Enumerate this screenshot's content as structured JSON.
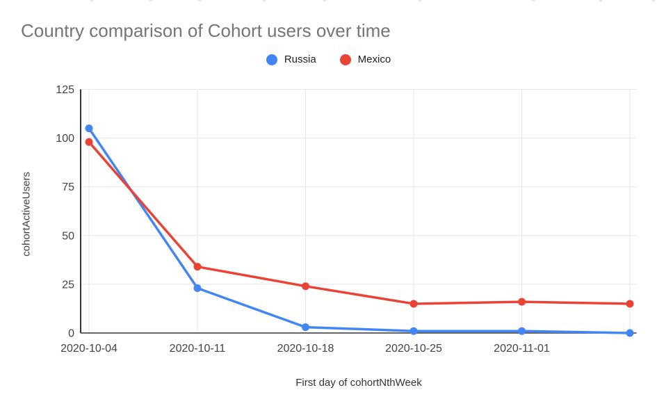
{
  "chart_data": {
    "type": "line",
    "title": "Country comparison of Cohort users over time",
    "xlabel": "First day of cohortNthWeek",
    "ylabel": "cohortActiveUsers",
    "categories": [
      "2020-10-04",
      "2020-10-11",
      "2020-10-18",
      "2020-10-25",
      "2020-11-01",
      ""
    ],
    "series": [
      {
        "name": "Russia",
        "color": "#4285F4",
        "values": [
          105,
          23,
          3,
          1,
          1,
          0
        ]
      },
      {
        "name": "Mexico",
        "color": "#EA4335",
        "values": [
          98,
          34,
          24,
          15,
          16,
          15
        ]
      }
    ],
    "ylim": [
      0,
      125
    ],
    "yticks": [
      0,
      25,
      50,
      75,
      100,
      125
    ],
    "grid": true,
    "legend_position": "top-center",
    "colors": {
      "title_text": "#757575",
      "tick_text": "#424242",
      "gridline": "#e6e6e6",
      "left_axis": "#333333",
      "baseline": "#666666"
    }
  }
}
